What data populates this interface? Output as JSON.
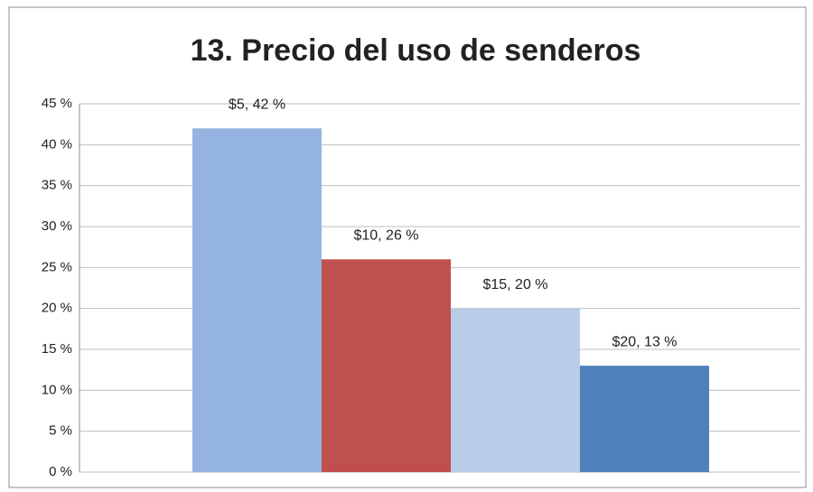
{
  "chart_data": {
    "type": "bar",
    "title": "13.  Precio del uso de senderos",
    "values": [
      42,
      26,
      20,
      13
    ],
    "value_labels": [
      "$5, 42 %",
      "$10, 26 %",
      "$15, 20 %",
      "$20, 13 %"
    ],
    "colors": [
      "#95b3e0",
      "#c0504d",
      "#b9cde9",
      "#4f81bd"
    ],
    "ylim": [
      0,
      45
    ],
    "yticks": [
      {
        "value": 0,
        "label": "0 %"
      },
      {
        "value": 5,
        "label": "5 %"
      },
      {
        "value": 10,
        "label": "10 %"
      },
      {
        "value": 15,
        "label": "15 %"
      },
      {
        "value": 20,
        "label": "20 %"
      },
      {
        "value": 25,
        "label": "25 %"
      },
      {
        "value": 30,
        "label": "30 %"
      },
      {
        "value": 35,
        "label": "35 %"
      },
      {
        "value": 40,
        "label": "40 %"
      },
      {
        "value": 45,
        "label": "45 %"
      }
    ],
    "grid": true
  }
}
